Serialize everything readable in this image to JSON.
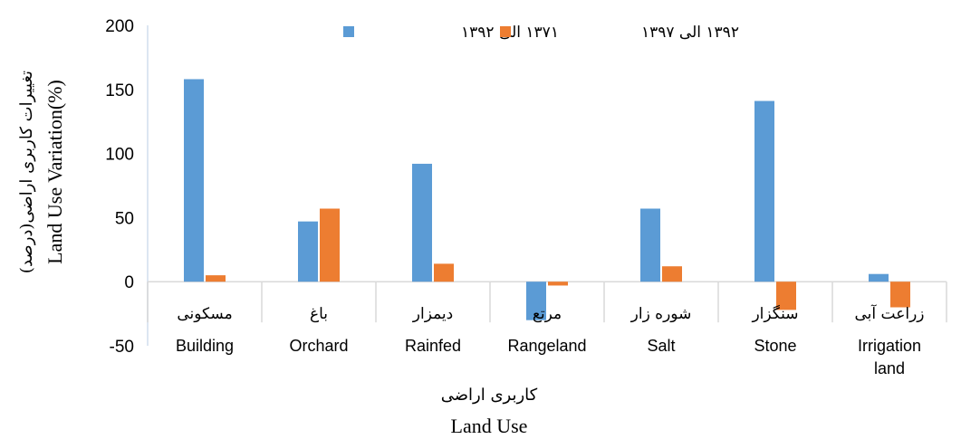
{
  "chart_data": {
    "type": "bar",
    "categories_fa": [
      "مسکونی",
      "باغ",
      "دیمزار",
      "مرتع",
      "شوره زار",
      "سنگزار",
      "زراعت آبی"
    ],
    "categories_en": [
      "Building",
      "Orchard",
      "Rainfed",
      "Rangeland",
      "Salt",
      "Stone",
      "Irrigation land"
    ],
    "series": [
      {
        "name": "۱۳۷۱ الی ۱۳۹۲",
        "color": "#5b9bd5",
        "values": [
          158,
          47,
          92,
          -30,
          57,
          141,
          6
        ]
      },
      {
        "name": "۱۳۹۲ الی ۱۳۹۷",
        "color": "#ed7d31",
        "values": [
          5,
          57,
          14,
          -3,
          12,
          -22,
          -20
        ]
      }
    ],
    "ylim": [
      -50,
      200
    ],
    "yticks": [
      -50,
      0,
      50,
      100,
      150,
      200
    ],
    "xlabel_fa": "کاربری اراضی",
    "xlabel_en": "Land Use",
    "ylabel_fa": "تغییرات کاربری اراضی(درصد)",
    "ylabel_en": "Land Use Variation(%)",
    "legend_position": "top",
    "grid": false
  }
}
